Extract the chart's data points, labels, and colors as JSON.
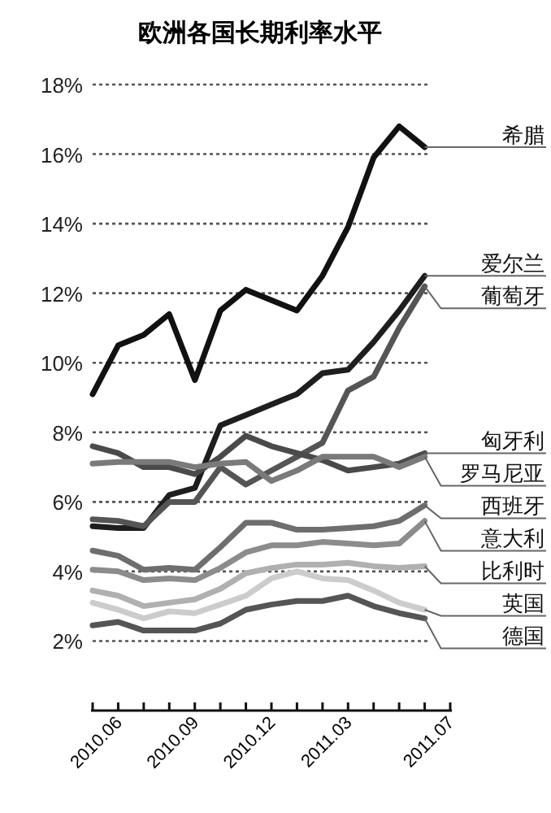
{
  "chart_data": {
    "type": "line",
    "title": "欧洲各国长期利率水平",
    "x": [
      "2010-05",
      "2010-06",
      "2010-07",
      "2010-08",
      "2010-09",
      "2010-10",
      "2010-11",
      "2010-12",
      "2011-01",
      "2011-02",
      "2011-03",
      "2011-04",
      "2011-05",
      "2011-06"
    ],
    "xlim": [
      "2010-05",
      "2011-07"
    ],
    "xticks": [
      {
        "value": "2010-05",
        "label": null
      },
      {
        "value": "2010-06",
        "label": "2010.06"
      },
      {
        "value": "2010-07",
        "label": null
      },
      {
        "value": "2010-08",
        "label": null
      },
      {
        "value": "2010-09",
        "label": "2010.09"
      },
      {
        "value": "2010-10",
        "label": null
      },
      {
        "value": "2010-11",
        "label": null
      },
      {
        "value": "2010-12",
        "label": "2010.12"
      },
      {
        "value": "2011-01",
        "label": null
      },
      {
        "value": "2011-02",
        "label": null
      },
      {
        "value": "2011-03",
        "label": "2011.03"
      },
      {
        "value": "2011-04",
        "label": null
      },
      {
        "value": "2011-05",
        "label": null
      },
      {
        "value": "2011-06",
        "label": null
      },
      {
        "value": "2011-07",
        "label": "2011.07"
      }
    ],
    "ylim": [
      0,
      18
    ],
    "yticks": [
      {
        "value": 2,
        "label": "2%"
      },
      {
        "value": 4,
        "label": "4%"
      },
      {
        "value": 6,
        "label": "6%"
      },
      {
        "value": 8,
        "label": "8%"
      },
      {
        "value": 10,
        "label": "10%"
      },
      {
        "value": 12,
        "label": "12%"
      },
      {
        "value": 14,
        "label": "14%"
      },
      {
        "value": 16,
        "label": "16%"
      },
      {
        "value": 18,
        "label": "18%"
      }
    ],
    "grid": "y",
    "marker": "none",
    "line_style": "solid",
    "series": [
      {
        "name": "希腊",
        "color": "#111111",
        "values": [
          9.1,
          10.5,
          10.8,
          11.4,
          9.5,
          11.5,
          12.1,
          11.8,
          11.5,
          12.5,
          13.9,
          15.9,
          16.8,
          16.2
        ]
      },
      {
        "name": "爱尔兰",
        "color": "#1e1e1e",
        "values": [
          5.3,
          5.25,
          5.25,
          6.2,
          6.4,
          8.2,
          8.5,
          8.8,
          9.1,
          9.7,
          9.8,
          10.6,
          11.5,
          12.5
        ]
      },
      {
        "name": "葡萄牙",
        "color": "#555555",
        "values": [
          5.5,
          5.45,
          5.3,
          6.0,
          6.0,
          7.0,
          6.5,
          6.9,
          7.3,
          7.7,
          9.2,
          9.6,
          11.0,
          12.2
        ]
      },
      {
        "name": "匈牙利",
        "color": "#4a4a4a",
        "values": [
          7.6,
          7.4,
          7.0,
          7.0,
          6.8,
          7.3,
          7.9,
          7.6,
          7.4,
          7.2,
          6.9,
          7.0,
          7.1,
          7.4
        ]
      },
      {
        "name": "罗马尼亚",
        "color": "#7a7a7a",
        "values": [
          7.1,
          7.15,
          7.15,
          7.15,
          7.0,
          7.1,
          7.15,
          6.6,
          6.9,
          7.3,
          7.3,
          7.3,
          7.0,
          7.3
        ]
      },
      {
        "name": "西班牙",
        "color": "#6e6e6e",
        "values": [
          4.6,
          4.45,
          4.05,
          4.1,
          4.05,
          4.7,
          5.4,
          5.4,
          5.2,
          5.2,
          5.25,
          5.3,
          5.45,
          5.9
        ]
      },
      {
        "name": "意大利",
        "color": "#8c8c8c",
        "values": [
          4.05,
          4.0,
          3.75,
          3.8,
          3.75,
          4.1,
          4.55,
          4.75,
          4.75,
          4.85,
          4.8,
          4.75,
          4.8,
          5.45
        ]
      },
      {
        "name": "比利时",
        "color": "#b0b0b0",
        "values": [
          3.45,
          3.3,
          3.0,
          3.1,
          3.2,
          3.5,
          3.95,
          4.1,
          4.2,
          4.2,
          4.25,
          4.15,
          4.1,
          4.15
        ]
      },
      {
        "name": "英国",
        "color": "#cccccc",
        "values": [
          3.1,
          2.9,
          2.65,
          2.85,
          2.8,
          3.05,
          3.3,
          3.8,
          4.0,
          3.8,
          3.75,
          3.45,
          3.1,
          2.9
        ]
      },
      {
        "name": "德国",
        "color": "#555555",
        "values": [
          2.45,
          2.55,
          2.3,
          2.3,
          2.3,
          2.5,
          2.9,
          3.05,
          3.15,
          3.15,
          3.3,
          3.0,
          2.8,
          2.65
        ]
      }
    ]
  }
}
